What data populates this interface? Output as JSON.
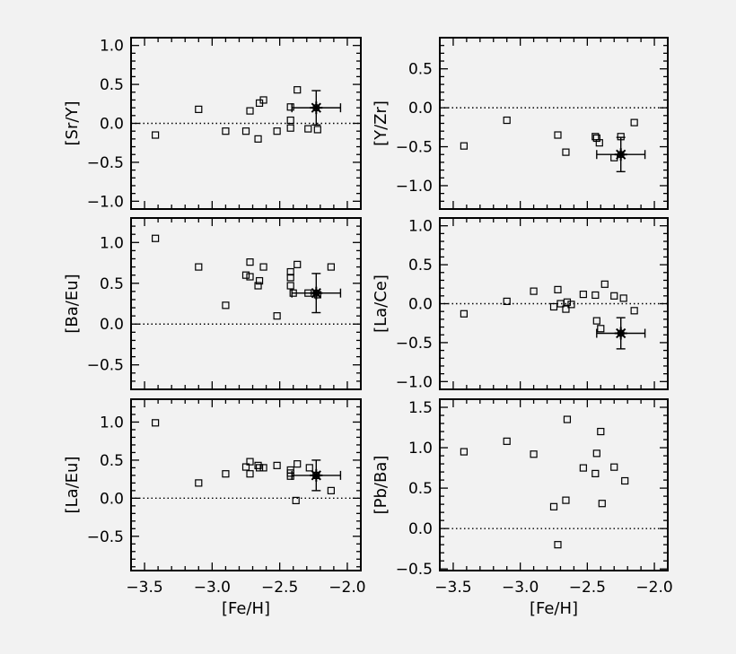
{
  "chart_data": [
    {
      "type": "scatter",
      "ylabel": "[Sr/Y]",
      "xlim": [
        -3.6,
        -1.9
      ],
      "ylim": [
        -1.1,
        1.1
      ],
      "yticks": [
        -1.0,
        -0.5,
        0.0,
        0.5,
        1.0
      ],
      "ytick_labels": [
        "−1.0",
        "−0.5",
        "0.0",
        "0.5",
        "1.0"
      ],
      "reference_line": 0,
      "points": [
        [
          -3.42,
          -0.15
        ],
        [
          -3.1,
          0.18
        ],
        [
          -2.9,
          -0.1
        ],
        [
          -2.75,
          -0.1
        ],
        [
          -2.72,
          0.16
        ],
        [
          -2.66,
          -0.2
        ],
        [
          -2.65,
          0.26
        ],
        [
          -2.62,
          0.3
        ],
        [
          -2.52,
          -0.1
        ],
        [
          -2.42,
          -0.06
        ],
        [
          -2.42,
          0.04
        ],
        [
          -2.42,
          0.21
        ],
        [
          -2.37,
          0.43
        ],
        [
          -2.29,
          -0.07
        ],
        [
          -2.22,
          -0.08
        ]
      ],
      "mean": {
        "x": -2.23,
        "y": 0.2,
        "xerr": 0.18,
        "yerr": 0.22
      }
    },
    {
      "type": "scatter",
      "ylabel": "[Y/Zr]",
      "xlim": [
        -3.6,
        -1.9
      ],
      "ylim": [
        -1.3,
        0.9
      ],
      "yticks": [
        -1.0,
        -0.5,
        0.0,
        0.5
      ],
      "ytick_labels": [
        "−1.0",
        "−0.5",
        "0.0",
        "0.5"
      ],
      "reference_line": 0,
      "points": [
        [
          -3.42,
          -0.49
        ],
        [
          -3.1,
          -0.16
        ],
        [
          -2.72,
          -0.35
        ],
        [
          -2.66,
          -0.57
        ],
        [
          -2.44,
          -0.37
        ],
        [
          -2.43,
          -0.39
        ],
        [
          -2.41,
          -0.45
        ],
        [
          -2.3,
          -0.64
        ],
        [
          -2.25,
          -0.37
        ],
        [
          -2.15,
          -0.19
        ]
      ],
      "mean": {
        "x": -2.25,
        "y": -0.6,
        "xerr": 0.18,
        "yerr": 0.22
      }
    },
    {
      "type": "scatter",
      "ylabel": "[Ba/Eu]",
      "xlim": [
        -3.6,
        -1.9
      ],
      "ylim": [
        -0.8,
        1.3
      ],
      "yticks": [
        -0.5,
        0.0,
        0.5,
        1.0
      ],
      "ytick_labels": [
        "−0.5",
        "0.0",
        "0.5",
        "1.0"
      ],
      "reference_line": 0,
      "points": [
        [
          -3.42,
          1.05
        ],
        [
          -3.1,
          0.7
        ],
        [
          -2.9,
          0.23
        ],
        [
          -2.75,
          0.6
        ],
        [
          -2.72,
          0.76
        ],
        [
          -2.72,
          0.58
        ],
        [
          -2.66,
          0.47
        ],
        [
          -2.65,
          0.53
        ],
        [
          -2.62,
          0.7
        ],
        [
          -2.52,
          0.1
        ],
        [
          -2.42,
          0.64
        ],
        [
          -2.42,
          0.57
        ],
        [
          -2.42,
          0.47
        ],
        [
          -2.4,
          0.38
        ],
        [
          -2.37,
          0.73
        ],
        [
          -2.29,
          0.38
        ],
        [
          -2.22,
          0.36
        ],
        [
          -2.12,
          0.7
        ]
      ],
      "mean": {
        "x": -2.23,
        "y": 0.38,
        "xerr": 0.18,
        "yerr": 0.24
      }
    },
    {
      "type": "scatter",
      "ylabel": "[La/Ce]",
      "xlim": [
        -3.6,
        -1.9
      ],
      "ylim": [
        -1.1,
        1.1
      ],
      "yticks": [
        -1.0,
        -0.5,
        0.0,
        0.5,
        1.0
      ],
      "ytick_labels": [
        "−1.0",
        "−0.5",
        "0.0",
        "0.5",
        "1.0"
      ],
      "reference_line": 0,
      "points": [
        [
          -3.42,
          -0.13
        ],
        [
          -3.1,
          0.03
        ],
        [
          -2.9,
          0.16
        ],
        [
          -2.75,
          -0.04
        ],
        [
          -2.72,
          0.18
        ],
        [
          -2.7,
          0.0
        ],
        [
          -2.66,
          -0.07
        ],
        [
          -2.65,
          0.02
        ],
        [
          -2.62,
          -0.01
        ],
        [
          -2.53,
          0.12
        ],
        [
          -2.44,
          0.11
        ],
        [
          -2.43,
          -0.22
        ],
        [
          -2.4,
          -0.32
        ],
        [
          -2.37,
          0.25
        ],
        [
          -2.3,
          0.1
        ],
        [
          -2.23,
          0.07
        ],
        [
          -2.15,
          -0.09
        ]
      ],
      "mean": {
        "x": -2.25,
        "y": -0.38,
        "xerr": 0.18,
        "yerr": 0.2
      }
    },
    {
      "type": "scatter",
      "ylabel": "[La/Eu]",
      "xlabel": "[Fe/H]",
      "xlim": [
        -3.6,
        -1.9
      ],
      "ylim": [
        -0.95,
        1.3
      ],
      "yticks": [
        -0.5,
        0.0,
        0.5,
        1.0
      ],
      "ytick_labels": [
        "−0.5",
        "0.0",
        "0.5",
        "1.0"
      ],
      "xticks": [
        -3.5,
        -3.0,
        -2.5,
        -2.0
      ],
      "xtick_labels": [
        "−3.5",
        "−3.0",
        "−2.5",
        "−2.0"
      ],
      "reference_line": 0,
      "points": [
        [
          -3.42,
          0.99
        ],
        [
          -3.1,
          0.2
        ],
        [
          -2.9,
          0.32
        ],
        [
          -2.75,
          0.41
        ],
        [
          -2.72,
          0.48
        ],
        [
          -2.72,
          0.32
        ],
        [
          -2.66,
          0.43
        ],
        [
          -2.65,
          0.4
        ],
        [
          -2.62,
          0.4
        ],
        [
          -2.52,
          0.43
        ],
        [
          -2.42,
          0.37
        ],
        [
          -2.42,
          0.33
        ],
        [
          -2.42,
          0.29
        ],
        [
          -2.38,
          -0.03
        ],
        [
          -2.37,
          0.45
        ],
        [
          -2.28,
          0.4
        ],
        [
          -2.23,
          0.3
        ],
        [
          -2.12,
          0.1
        ]
      ],
      "mean": {
        "x": -2.23,
        "y": 0.3,
        "xerr": 0.18,
        "yerr": 0.2
      }
    },
    {
      "type": "scatter",
      "ylabel": "[Pb/Ba]",
      "xlabel": "[Fe/H]",
      "xlim": [
        -3.6,
        -1.9
      ],
      "ylim": [
        -0.52,
        1.6
      ],
      "yticks": [
        -0.5,
        0.0,
        0.5,
        1.0,
        1.5
      ],
      "ytick_labels": [
        "−0.5",
        "0.0",
        "0.5",
        "1.0",
        "1.5"
      ],
      "xticks": [
        -3.5,
        -3.0,
        -2.5,
        -2.0
      ],
      "xtick_labels": [
        "−3.5",
        "−3.0",
        "−2.5",
        "−2.0"
      ],
      "reference_line": 0,
      "points": [
        [
          -3.42,
          0.95
        ],
        [
          -3.1,
          1.08
        ],
        [
          -2.9,
          0.92
        ],
        [
          -2.75,
          0.27
        ],
        [
          -2.72,
          -0.2
        ],
        [
          -2.66,
          0.35
        ],
        [
          -2.65,
          1.35
        ],
        [
          -2.53,
          0.75
        ],
        [
          -2.44,
          0.68
        ],
        [
          -2.43,
          0.93
        ],
        [
          -2.4,
          1.2
        ],
        [
          -2.39,
          0.31
        ],
        [
          -2.3,
          0.76
        ],
        [
          -2.22,
          0.59
        ]
      ]
    }
  ]
}
